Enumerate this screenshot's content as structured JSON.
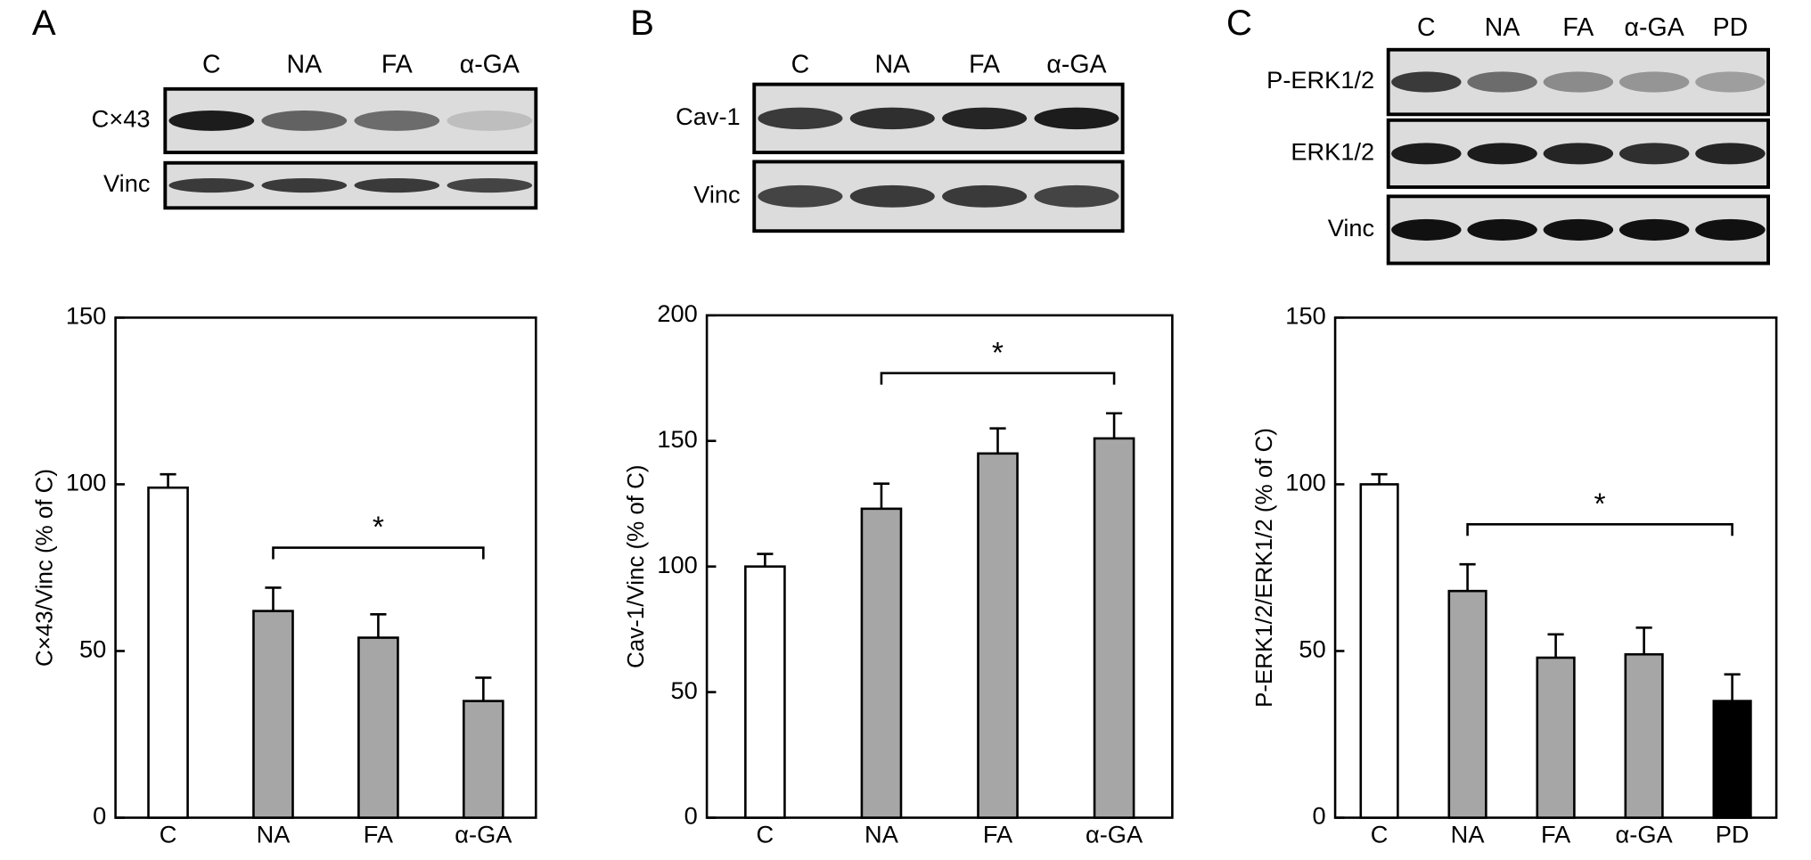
{
  "chart_data": [
    {
      "type": "bar",
      "panel": "A",
      "categories": [
        "C",
        "NA",
        "FA",
        "α-GA"
      ],
      "blot_rows": [
        "C×43",
        "Vinc"
      ],
      "values": [
        99,
        62,
        54,
        35
      ],
      "errors": [
        4,
        7,
        7,
        7
      ],
      "colors": [
        "#ffffff",
        "#a6a6a6",
        "#a6a6a6",
        "#a6a6a6"
      ],
      "y_label": "C×43/Vinc (% of C)",
      "ylim": [
        0,
        150
      ],
      "yticks": [
        0,
        50,
        100,
        150
      ],
      "annotations": [
        {
          "text": "*",
          "from": "NA",
          "to": "α-GA"
        }
      ]
    },
    {
      "type": "bar",
      "panel": "B",
      "categories": [
        "C",
        "NA",
        "FA",
        "α-GA"
      ],
      "blot_rows": [
        "Cav-1",
        "Vinc"
      ],
      "values": [
        100,
        123,
        145,
        151
      ],
      "errors": [
        5,
        10,
        10,
        10
      ],
      "colors": [
        "#ffffff",
        "#a6a6a6",
        "#a6a6a6",
        "#a6a6a6"
      ],
      "y_label": "Cav-1/Vinc (% of C)",
      "ylim": [
        0,
        200
      ],
      "yticks": [
        0,
        50,
        100,
        150,
        200
      ],
      "annotations": [
        {
          "text": "*",
          "from": "NA",
          "to": "α-GA"
        }
      ]
    },
    {
      "type": "bar",
      "panel": "C",
      "categories": [
        "C",
        "NA",
        "FA",
        "α-GA",
        "PD"
      ],
      "blot_rows": [
        "P-ERK1/2",
        "ERK1/2",
        "Vinc"
      ],
      "values": [
        100,
        68,
        48,
        49,
        35
      ],
      "errors": [
        3,
        8,
        7,
        8,
        8
      ],
      "colors": [
        "#ffffff",
        "#a6a6a6",
        "#a6a6a6",
        "#a6a6a6",
        "#000000"
      ],
      "y_label": "P-ERK1/2/ERK1/2 (% of C)",
      "ylim": [
        0,
        150
      ],
      "yticks": [
        0,
        50,
        100,
        150
      ],
      "annotations": [
        {
          "text": "*",
          "from": "NA",
          "to": "PD"
        }
      ]
    }
  ]
}
